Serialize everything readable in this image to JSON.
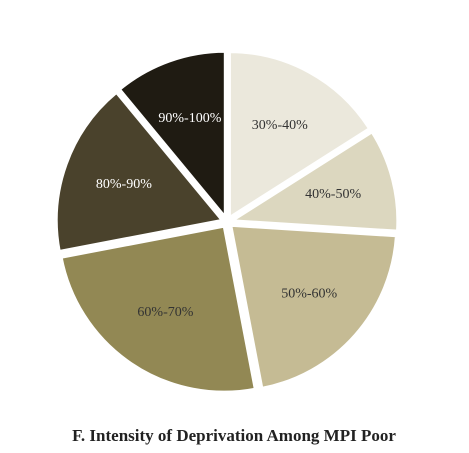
{
  "chart_data": {
    "type": "pie",
    "title": "F. Intensity of Deprivation Among MPI Poor",
    "categories": [
      "30%-40%",
      "40%-50%",
      "50%-60%",
      "60%-70%",
      "80%-90%",
      "90%-100%"
    ],
    "values": [
      16,
      10,
      21,
      25,
      17,
      11
    ],
    "colors": [
      "#ebe8dc",
      "#dcd7bf",
      "#c5bb94",
      "#928854",
      "#4a422c",
      "#1f1b12"
    ],
    "label_colors": [
      "#333333",
      "#333333",
      "#333333",
      "#333333",
      "#ffffff",
      "#ffffff"
    ]
  }
}
